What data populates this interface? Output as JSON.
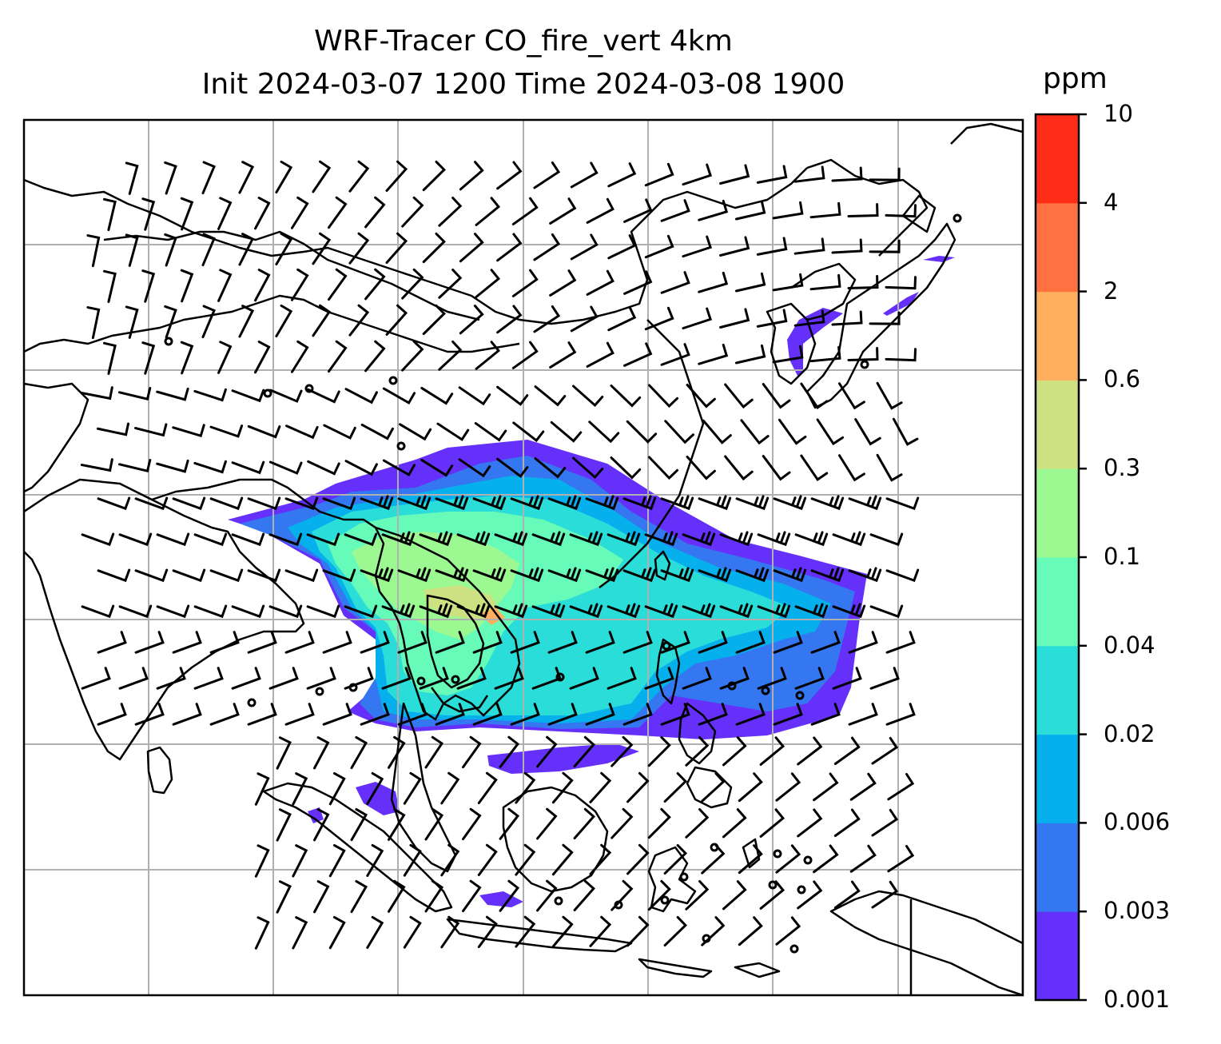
{
  "title": {
    "line1": "WRF-Tracer CO_fire_vert 4km",
    "line2": "Init 2024-03-07 1200 Time 2024-03-08 1900"
  },
  "colorbar": {
    "unit": "ppm",
    "levels": [
      "0.001",
      "0.003",
      "0.006",
      "0.02",
      "0.04",
      "0.1",
      "0.3",
      "0.6",
      "2",
      "4",
      "10"
    ],
    "colors": [
      "#6530fa",
      "#3477f0",
      "#06b0ec",
      "#2bddd8",
      "#66fbb8",
      "#9cf891",
      "#cde183",
      "#ffaf5d",
      "#ff7140",
      "#ff2d18"
    ]
  },
  "map": {
    "grid_color": "#b0b0b0",
    "coast_color": "#000000",
    "barb_color": "#000000"
  }
}
